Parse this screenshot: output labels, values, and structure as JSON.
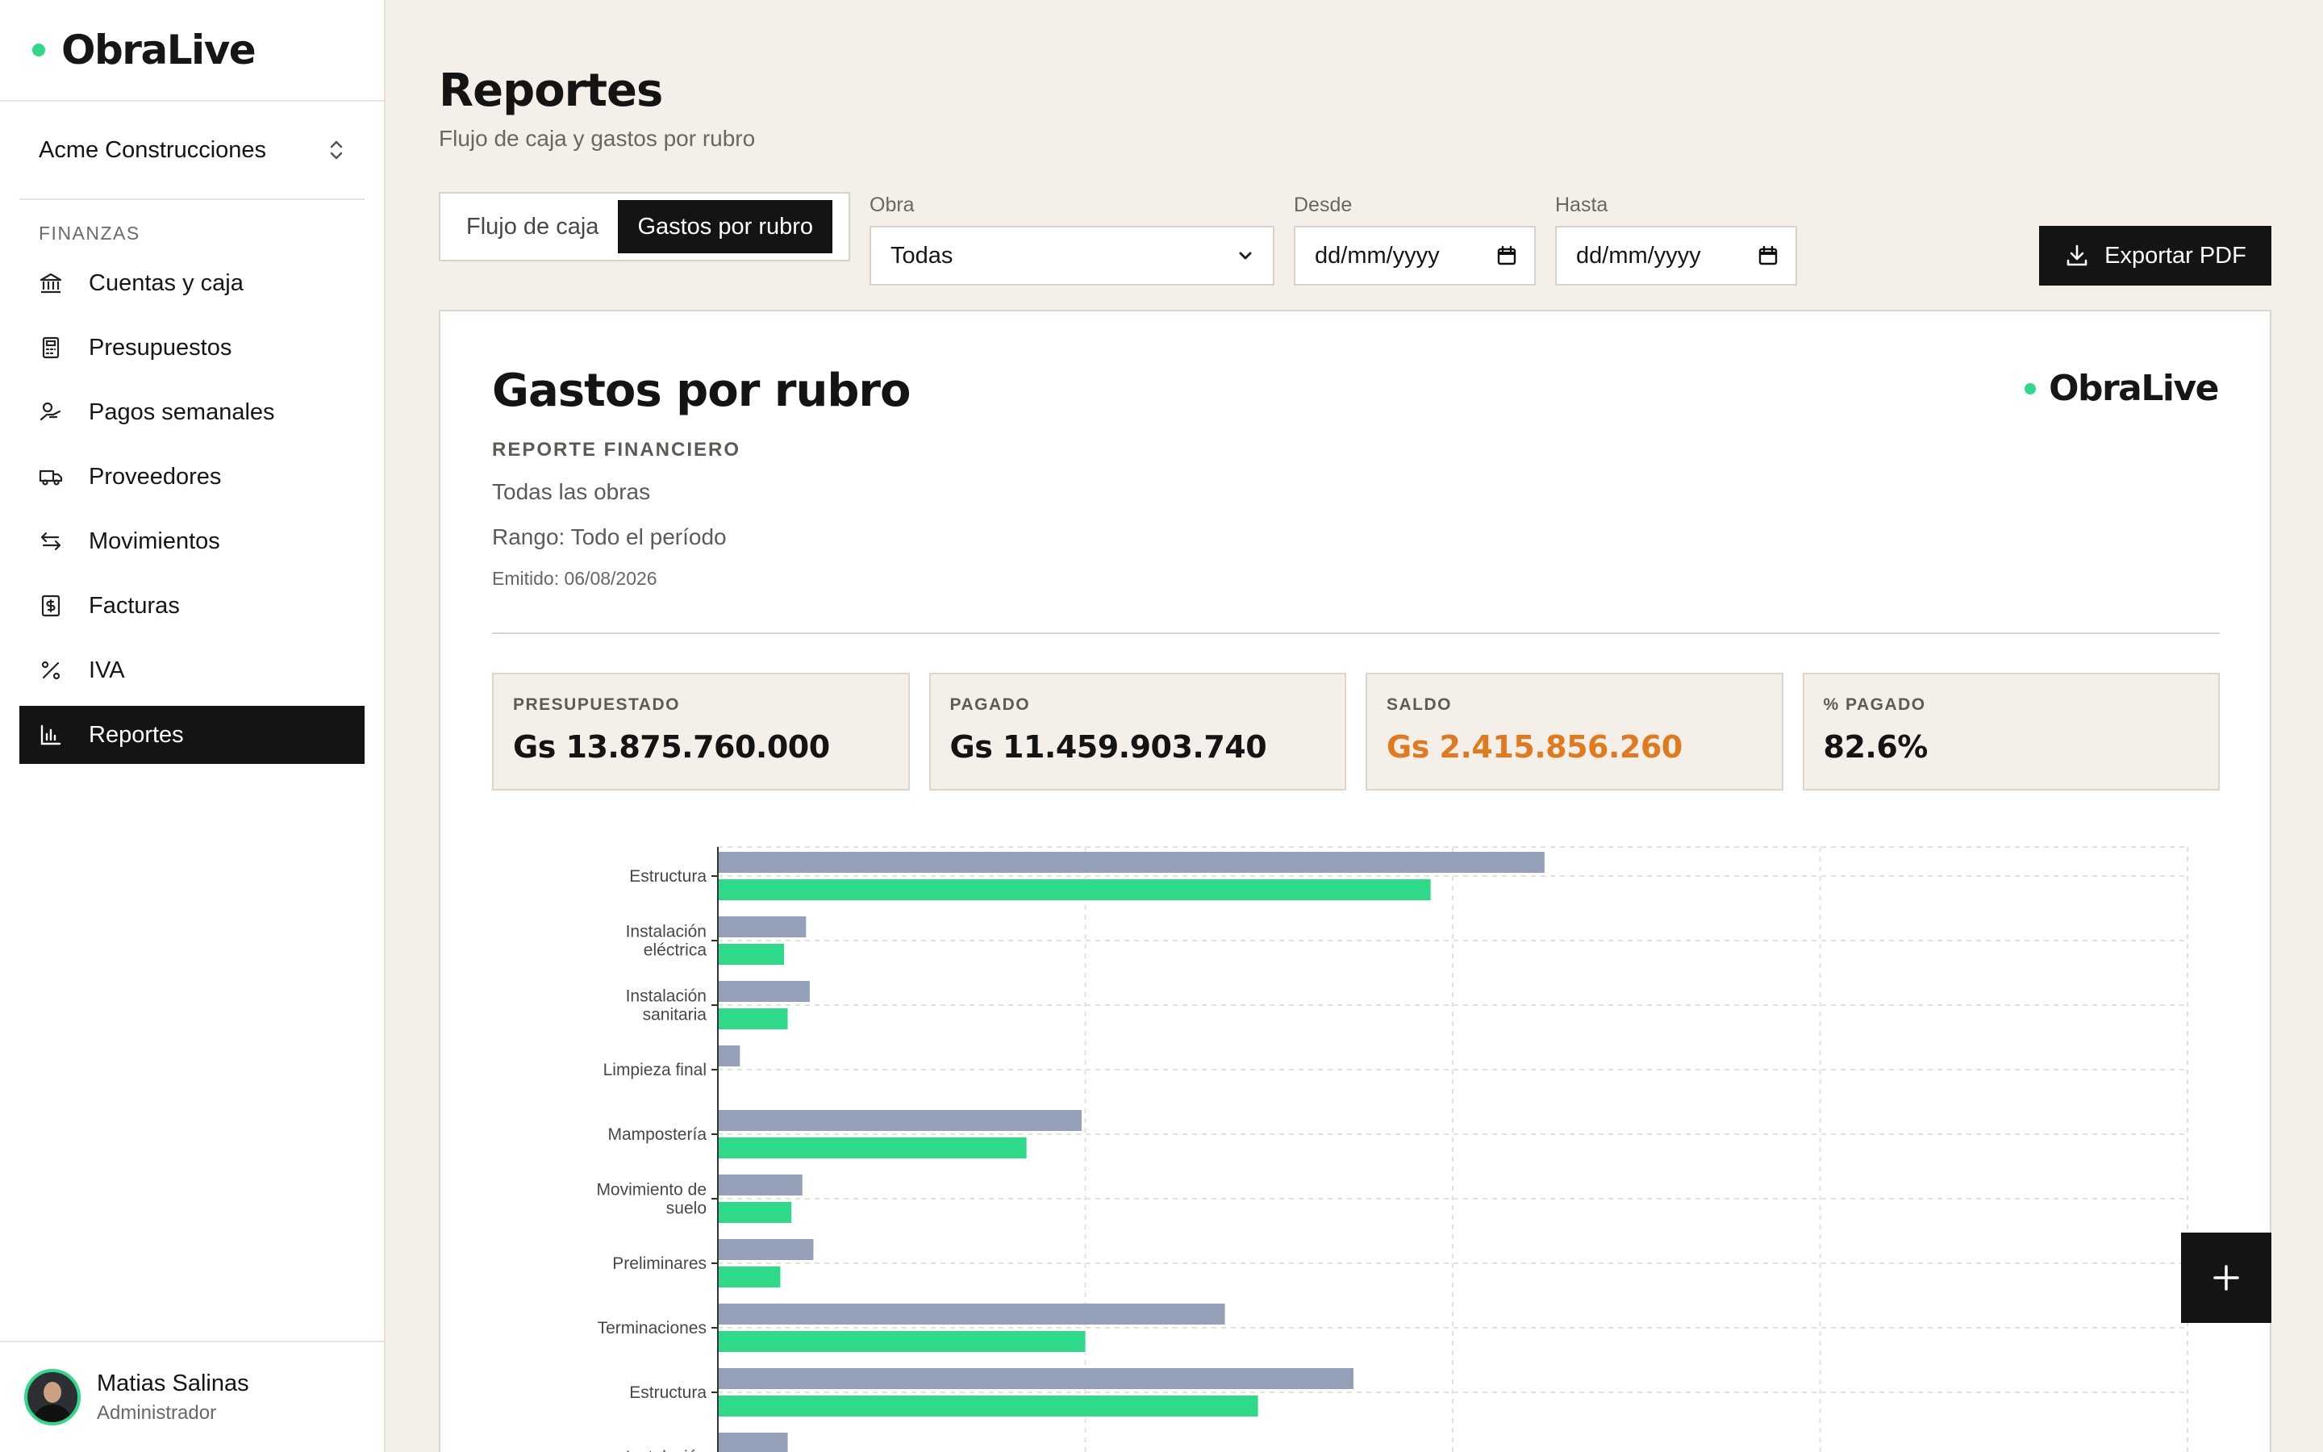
{
  "app": {
    "brand": "ObraLive"
  },
  "sidebar": {
    "org": "Acme Construcciones",
    "section": "FINANZAS",
    "items": [
      {
        "label": "Cuentas y caja",
        "icon": "bank-icon"
      },
      {
        "label": "Presupuestos",
        "icon": "calculator-icon"
      },
      {
        "label": "Pagos semanales",
        "icon": "payments-icon"
      },
      {
        "label": "Proveedores",
        "icon": "truck-icon"
      },
      {
        "label": "Movimientos",
        "icon": "transfer-icon"
      },
      {
        "label": "Facturas",
        "icon": "invoice-icon"
      },
      {
        "label": "IVA",
        "icon": "percent-icon"
      },
      {
        "label": "Reportes",
        "icon": "bar-chart-icon",
        "active": true
      }
    ],
    "user": {
      "name": "Matias Salinas",
      "role": "Administrador"
    }
  },
  "header": {
    "title": "Reportes",
    "subtitle": "Flujo de caja y gastos por rubro"
  },
  "tabs": [
    {
      "label": "Flujo de caja",
      "active": false
    },
    {
      "label": "Gastos por rubro",
      "active": true
    }
  ],
  "filters": {
    "obra": {
      "label": "Obra",
      "value": "Todas"
    },
    "desde": {
      "label": "Desde",
      "value": "dd/mm/yyyy"
    },
    "hasta": {
      "label": "Hasta",
      "value": "dd/mm/yyyy"
    }
  },
  "export_label": "Exportar PDF",
  "report": {
    "title": "Gastos por rubro",
    "kicker": "REPORTE FINANCIERO",
    "scope": "Todas las obras",
    "range": "Rango: Todo el período",
    "issued": "Emitido: 06/08/2026",
    "brand": "ObraLive",
    "kpis": [
      {
        "label": "PRESUPUESTADO",
        "value": "Gs 13.875.760.000"
      },
      {
        "label": "PAGADO",
        "value": "Gs 11.459.903.740"
      },
      {
        "label": "SALDO",
        "value": "Gs 2.415.856.260"
      },
      {
        "label": "% PAGADO",
        "value": "82.6%"
      }
    ]
  },
  "colors": {
    "budget": "#94a0b8",
    "paid": "#2fd98a",
    "accent": "#2fd98a",
    "warning": "#e07a1f"
  },
  "chart_data": {
    "type": "bar",
    "orientation": "horizontal",
    "categories": [
      [
        "Estructura"
      ],
      [
        "Instalación",
        "eléctrica"
      ],
      [
        "Instalación",
        "sanitaria"
      ],
      [
        "Limpieza final"
      ],
      [
        "Mampostería"
      ],
      [
        "Movimiento de",
        "suelo"
      ],
      [
        "Preliminares"
      ],
      [
        "Terminaciones"
      ],
      [
        "Estructura"
      ],
      [
        "Instalación"
      ]
    ],
    "series": [
      {
        "values": [
          2.25,
          0.24,
          0.25,
          0.06,
          0.99,
          0.23,
          0.26,
          1.38,
          1.73,
          0.19
        ]
      },
      {
        "values": [
          1.94,
          0.18,
          0.19,
          null,
          0.84,
          0.2,
          0.17,
          1.0,
          1.47,
          null
        ]
      }
    ],
    "xlim": [
      0,
      4.0
    ],
    "grid": true
  }
}
